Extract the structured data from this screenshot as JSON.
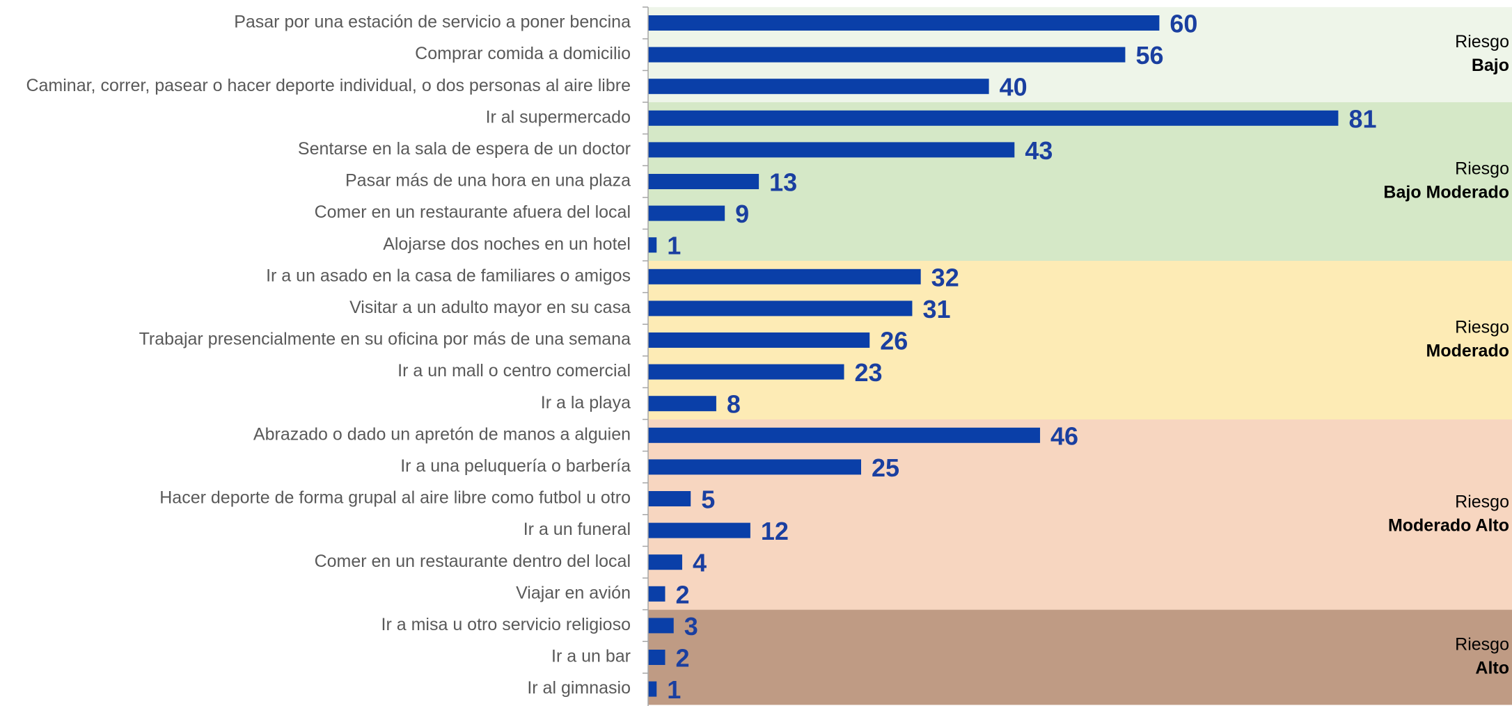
{
  "chart_data": {
    "type": "bar",
    "orientation": "horizontal",
    "color": "#0a3fa8",
    "xlim": [
      0,
      100
    ],
    "groups": [
      {
        "label": "Riesgo",
        "name": "Bajo",
        "color": "#eef5e9",
        "categories": [
          "Pasar por una estación de servicio a poner bencina",
          "Comprar comida a domicilio",
          "Caminar, correr, pasear o hacer deporte individual, o dos personas al aire libre"
        ],
        "values": [
          60,
          56,
          40
        ]
      },
      {
        "label": "Riesgo",
        "name": "Bajo Moderado",
        "color": "#d5e8c7",
        "categories": [
          "Ir al supermercado",
          "Sentarse en la sala de espera de un doctor",
          "Pasar más de una hora en una plaza",
          "Comer en un restaurante afuera del local",
          "Alojarse dos noches en un hotel"
        ],
        "values": [
          81,
          43,
          13,
          9,
          1
        ]
      },
      {
        "label": "Riesgo",
        "name": "Moderado",
        "color": "#fdebb5",
        "categories": [
          "Ir a un asado en la casa de familiares o amigos",
          "Visitar a un adulto mayor en su casa",
          "Trabajar presencialmente en su oficina por más de una semana",
          "Ir a un mall o centro comercial",
          "Ir a la playa"
        ],
        "values": [
          32,
          31,
          26,
          23,
          8
        ]
      },
      {
        "label": "Riesgo",
        "name": "Moderado Alto",
        "color": "#f7d6c0",
        "categories": [
          "Abrazado o dado un apretón de manos a alguien",
          "Ir a una peluquería o barbería",
          "Hacer deporte de forma grupal al aire libre como futbol u otro",
          "Ir a un funeral",
          "Comer en un restaurante dentro del local",
          "Viajar en avión"
        ],
        "values": [
          46,
          25,
          5,
          12,
          4,
          2
        ]
      },
      {
        "label": "Riesgo",
        "name": "Alto",
        "color": "#bf9b84",
        "categories": [
          "Ir a misa u otro servicio religioso",
          "Ir a un bar",
          "Ir al gimnasio"
        ],
        "values": [
          3,
          2,
          1
        ]
      }
    ]
  }
}
